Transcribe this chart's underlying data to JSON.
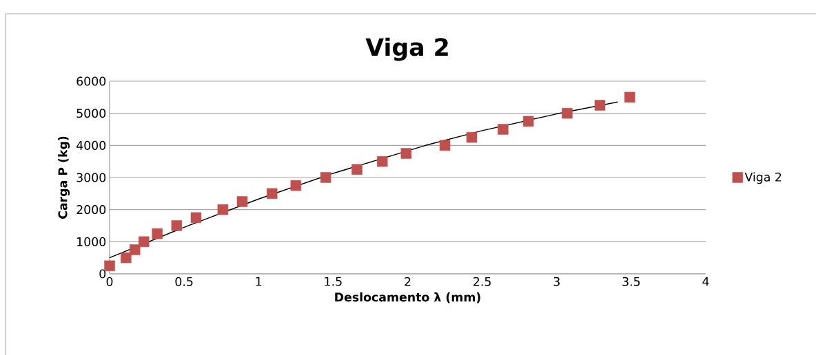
{
  "chart_data": {
    "type": "scatter",
    "title": "Viga 2",
    "xlabel": "Deslocamento λ (mm)",
    "ylabel": "Carga P (kg)",
    "series": [
      {
        "name": "Viga 2",
        "color": "#c0504d",
        "type": "scatter",
        "marker": "square",
        "x": [
          0,
          0.11,
          0.17,
          0.23,
          0.32,
          0.45,
          0.58,
          0.76,
          0.89,
          1.09,
          1.25,
          1.45,
          1.66,
          1.83,
          1.99,
          2.25,
          2.43,
          2.64,
          2.81,
          3.07,
          3.29,
          3.49
        ],
        "values": [
          250,
          500,
          750,
          1000,
          1250,
          1500,
          1750,
          2000,
          2250,
          2500,
          2750,
          3000,
          3250,
          3500,
          3750,
          4000,
          4250,
          4500,
          4750,
          5000,
          5250,
          5500
        ]
      },
      {
        "color": "#000000",
        "type": "line",
        "marker": "none",
        "line_style": "solid",
        "x": [
          0,
          0.5,
          1,
          1.5,
          2.12,
          2.5,
          3,
          3.41
        ],
        "values": [
          500,
          1450,
          2330,
          3130,
          4000,
          4460,
          4980,
          5350
        ]
      }
    ],
    "xlim": [
      0,
      4
    ],
    "ylim": [
      0,
      6000
    ],
    "xticks": [
      0,
      0.5,
      1,
      1.5,
      2,
      2.5,
      3,
      3.5,
      4
    ],
    "yticks": [
      0,
      1000,
      2000,
      3000,
      4000,
      5000,
      6000
    ],
    "grid": "y",
    "legend": "right"
  }
}
